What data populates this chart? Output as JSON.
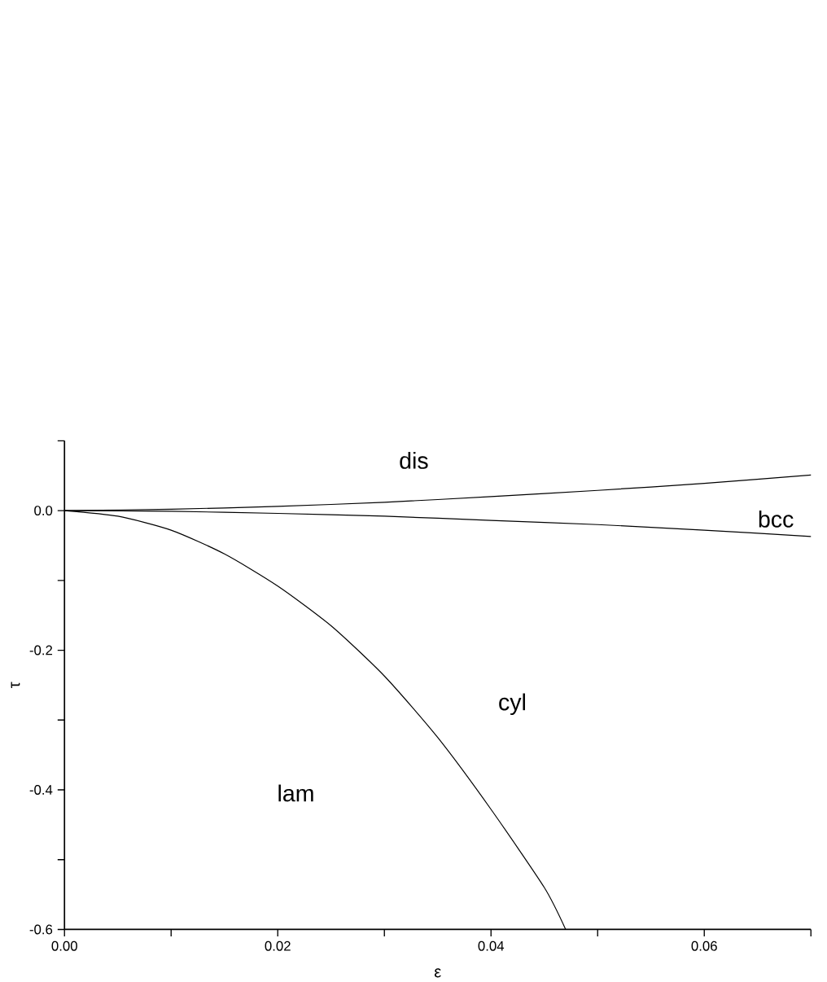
{
  "chart_data": {
    "type": "line",
    "xlabel": "ε",
    "ylabel": "τ",
    "x": [
      0,
      0.005,
      0.01,
      0.015,
      0.02,
      0.025,
      0.03,
      0.035,
      0.04,
      0.045,
      0.047
    ],
    "series": [
      {
        "color": "#000000",
        "x": [
          0,
          0.01,
          0.02,
          0.03,
          0.04,
          0.05,
          0.06,
          0.07
        ],
        "values": [
          0,
          0.002,
          0.006,
          0.012,
          0.02,
          0.029,
          0.039,
          0.051
        ]
      },
      {
        "color": "#000000",
        "x": [
          0,
          0.01,
          0.02,
          0.03,
          0.04,
          0.05,
          0.06,
          0.07
        ],
        "values": [
          0,
          -0.001,
          -0.004,
          -0.008,
          -0.014,
          -0.02,
          -0.028,
          -0.037
        ]
      },
      {
        "color": "#000000",
        "values": [
          0,
          -0.008,
          -0.028,
          -0.062,
          -0.108,
          -0.165,
          -0.237,
          -0.325,
          -0.428,
          -0.54,
          -0.6
        ]
      }
    ],
    "xlim": [
      0,
      0.07
    ],
    "ylim": [
      -0.6,
      0.1
    ],
    "xticks": [
      {
        "value": 0,
        "label": "0.00"
      },
      {
        "value": 0.01,
        "label": null
      },
      {
        "value": 0.02,
        "label": "0.02"
      },
      {
        "value": 0.03,
        "label": null
      },
      {
        "value": 0.04,
        "label": "0.04"
      },
      {
        "value": 0.05,
        "label": null
      },
      {
        "value": 0.06,
        "label": "0.06"
      },
      {
        "value": 0.07,
        "label": null
      }
    ],
    "yticks": [
      {
        "value": -0.6,
        "label": "-0.6"
      },
      {
        "value": -0.5,
        "label": null
      },
      {
        "value": -0.4,
        "label": "-0.4"
      },
      {
        "value": -0.3,
        "label": null
      },
      {
        "value": -0.2,
        "label": "-0.2"
      },
      {
        "value": -0.1,
        "label": null
      },
      {
        "value": 0,
        "label": "0.0"
      },
      {
        "value": 0.1,
        "label": null
      }
    ],
    "annotations": [
      "dis",
      "bcc",
      "cyl",
      "lam"
    ],
    "grid": false
  }
}
